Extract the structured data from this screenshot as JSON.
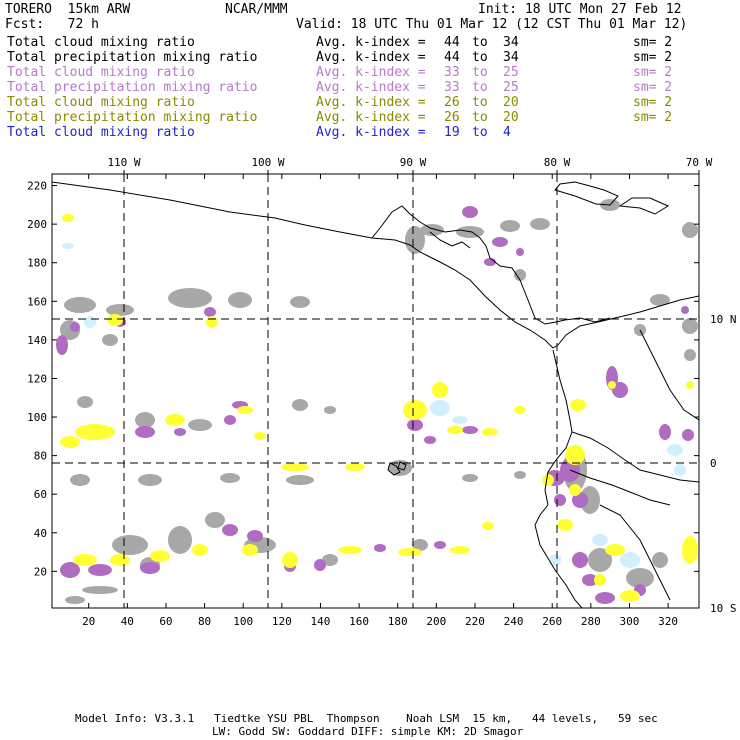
{
  "header": {
    "model": "TORERO  15km ARW",
    "org": "NCAR/MMM",
    "init": "Init: 18 UTC Mon 27 Feb 12",
    "fcst": "Fcst:   72 h",
    "valid": "Valid: 18 UTC Thu 01 Mar 12 (12 CST Thu 01 Mar 12)"
  },
  "legend": [
    {
      "field": "Total cloud mixing ratio",
      "avg": "Avg. k-index =",
      "from": "44",
      "to": "to",
      "to_val": "34",
      "sm": "sm= 2",
      "color": "#000000"
    },
    {
      "field": "Total precipitation mixing ratio",
      "avg": "Avg. k-index =",
      "from": "44",
      "to": "to",
      "to_val": "34",
      "sm": "sm= 2",
      "color": "#000000"
    },
    {
      "field": "Total cloud mixing ratio",
      "avg": "Avg. k-index =",
      "from": "33",
      "to": "to",
      "to_val": "25",
      "sm": "sm= 2",
      "color": "#b87ac8"
    },
    {
      "field": "Total precipitation mixing ratio",
      "avg": "Avg. k-index =",
      "from": "33",
      "to": "to",
      "to_val": "25",
      "sm": "sm= 2",
      "color": "#b87ac8"
    },
    {
      "field": "Total cloud mixing ratio",
      "avg": "Avg. k-index =",
      "from": "26",
      "to": "to",
      "to_val": "20",
      "sm": "sm= 2",
      "color": "#8a8a00"
    },
    {
      "field": "Total precipitation mixing ratio",
      "avg": "Avg. k-index =",
      "from": "26",
      "to": "to",
      "to_val": "20",
      "sm": "sm= 2",
      "color": "#8a8a00"
    },
    {
      "field": "Total cloud mixing ratio",
      "avg": "Avg. k-index =",
      "from": "19",
      "to": "to",
      "to_val": "4",
      "sm": "",
      "color": "#2222cc"
    }
  ],
  "axes": {
    "lon_labels": [
      "110 W",
      "100 W",
      "90 W",
      "80 W",
      "70 W"
    ],
    "lat_labels": [
      "10 N",
      "0",
      "10 S"
    ],
    "x_ticks": [
      "20",
      "40",
      "60",
      "80",
      "100",
      "120",
      "140",
      "160",
      "180",
      "200",
      "220",
      "240",
      "260",
      "280",
      "300",
      "320"
    ],
    "y_ticks": [
      "20",
      "40",
      "60",
      "80",
      "100",
      "120",
      "140",
      "160",
      "180",
      "200",
      "220"
    ]
  },
  "footer": {
    "line1": "Model Info: V3.3.1   Tiedtke YSU PBL  Thompson    Noah LSM  15 km,   44 levels,   59 sec",
    "line2": "LW: Godd SW: Goddard DIFF: simple KM: 2D Smagor"
  },
  "colors": {
    "gray": "#a8a8a8",
    "purple": "#b06cc0",
    "yellow": "#ffff33",
    "lightblue": "#d0f0ff"
  }
}
